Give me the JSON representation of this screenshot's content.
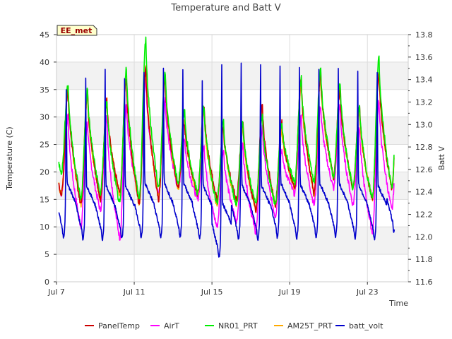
{
  "chart_data": {
    "type": "line",
    "title": "Temperature and Batt V",
    "site_label": "EE_met",
    "xlabel": "Time",
    "ylabel_left": "Temperature (C)",
    "ylabel_right": "Batt V",
    "x_range_days": [
      0,
      18.1
    ],
    "x_ticks": [
      {
        "day": 0,
        "label": "Jul 7"
      },
      {
        "day": 4,
        "label": "Jul 11"
      },
      {
        "day": 8,
        "label": "Jul 15"
      },
      {
        "day": 12,
        "label": "Jul 19"
      },
      {
        "day": 16,
        "label": "Jul 23"
      }
    ],
    "ylim_left": [
      0,
      45
    ],
    "y_ticks_left": [
      0,
      5,
      10,
      15,
      20,
      25,
      30,
      35,
      40,
      45
    ],
    "ylim_right": [
      11.6,
      13.8
    ],
    "y_ticks_right": [
      11.6,
      11.8,
      12.0,
      12.2,
      12.4,
      12.6,
      12.8,
      13.0,
      13.2,
      13.4,
      13.6,
      13.8
    ],
    "grid": true,
    "legend_position": "bottom",
    "series": [
      {
        "name": "PanelTemp",
        "color": "#cc0000",
        "axis": "left",
        "daily_min": [
          16,
          14,
          15,
          16,
          14,
          15,
          17,
          16,
          15,
          15,
          13,
          14,
          17,
          16,
          19,
          17,
          15,
          17
        ],
        "daily_max": [
          35,
          35,
          33,
          37,
          39,
          37,
          29,
          32,
          28,
          29,
          32,
          29,
          37,
          38,
          35,
          32,
          38,
          37
        ]
      },
      {
        "name": "AirT",
        "color": "#ff00ff",
        "axis": "left",
        "daily_min": [
          16,
          10,
          13,
          8,
          15,
          16,
          17,
          15,
          10,
          11,
          9,
          12,
          16,
          14,
          17,
          14,
          9,
          13
        ],
        "daily_max": [
          30,
          29,
          30,
          32,
          37,
          33,
          26,
          25,
          24,
          25,
          28,
          24,
          30,
          32,
          32,
          28,
          33,
          32
        ]
      },
      {
        "name": "NR01_PRT",
        "color": "#00ee00",
        "axis": "left",
        "daily_min": [
          20,
          15,
          16,
          14,
          15,
          17,
          18,
          16,
          14,
          14,
          14,
          14,
          18,
          18,
          19,
          17,
          15,
          17
        ],
        "daily_max": [
          36,
          35,
          33,
          39,
          44,
          38,
          31,
          32,
          29,
          29,
          30,
          29,
          37,
          39,
          36,
          32,
          41,
          40
        ]
      },
      {
        "name": "AM25T_PRT",
        "color": "#ffaa00",
        "axis": "left",
        "daily_min": [
          16,
          14,
          15,
          16,
          14,
          15,
          17,
          16,
          14,
          14,
          13,
          14,
          17,
          16,
          19,
          17,
          15,
          17
        ],
        "daily_max": [
          35,
          34,
          33,
          37,
          39,
          37,
          29,
          31,
          28,
          28,
          31,
          28,
          36,
          37,
          35,
          31,
          38,
          37
        ]
      },
      {
        "name": "batt_volt",
        "color": "#0000cc",
        "axis": "right",
        "daily_min": [
          12.0,
          11.98,
          11.98,
          11.98,
          12.0,
          12.0,
          12.0,
          11.98,
          11.82,
          11.98,
          11.98,
          12.0,
          11.99,
          12.0,
          12.0,
          11.99,
          11.98,
          12.05
        ],
        "daily_max": [
          13.4,
          13.5,
          13.6,
          13.48,
          13.55,
          13.6,
          13.58,
          13.48,
          13.65,
          13.64,
          13.62,
          13.6,
          13.6,
          13.57,
          13.6,
          13.58,
          13.55,
          13.58
        ]
      }
    ]
  }
}
